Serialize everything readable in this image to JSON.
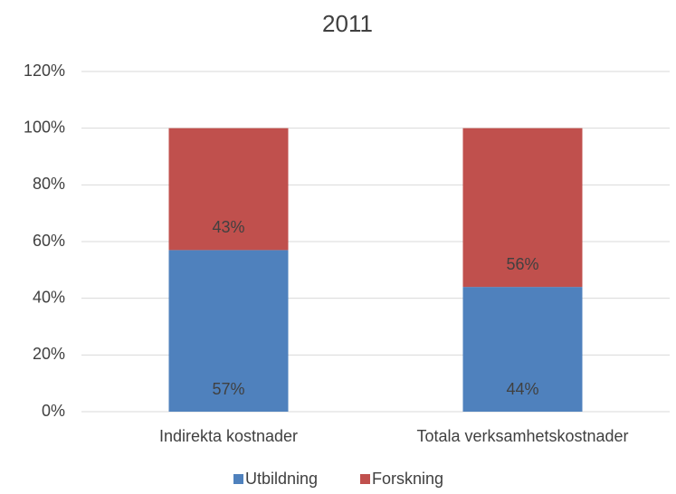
{
  "chart_data": {
    "type": "stacked_bar",
    "title": "2011",
    "categories": [
      "Indirekta kostnader",
      "Totala verksamhetskostnader"
    ],
    "series": [
      {
        "name": "Utbildning",
        "color": "#4f81bd",
        "values": [
          57,
          44
        ],
        "value_labels": [
          "57%",
          "44%"
        ]
      },
      {
        "name": "Forskning",
        "color": "#c0504d",
        "values": [
          43,
          56
        ],
        "value_labels": [
          "43%",
          "56%"
        ]
      }
    ],
    "ylim": [
      0,
      120
    ],
    "yticks": [
      {
        "value": 0,
        "label": "0%"
      },
      {
        "value": 20,
        "label": "20%"
      },
      {
        "value": 40,
        "label": "40%"
      },
      {
        "value": 60,
        "label": "60%"
      },
      {
        "value": 80,
        "label": "80%"
      },
      {
        "value": 100,
        "label": "100%"
      },
      {
        "value": 120,
        "label": "120%"
      }
    ],
    "grid": true,
    "legend": "bottom"
  }
}
